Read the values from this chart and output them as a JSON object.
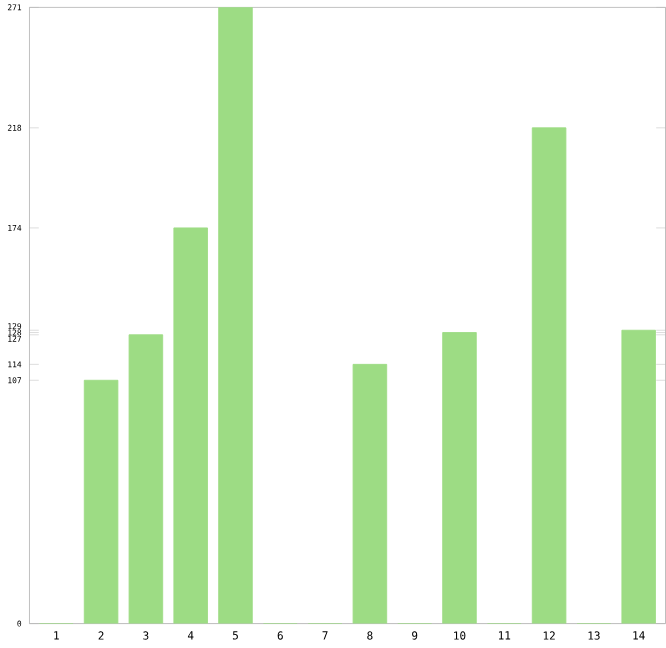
{
  "chart_data": {
    "type": "bar",
    "categories": [
      "1",
      "2",
      "3",
      "4",
      "5",
      "6",
      "7",
      "8",
      "9",
      "10",
      "11",
      "12",
      "13",
      "14"
    ],
    "values": [
      0,
      107,
      127,
      174,
      271,
      0,
      0,
      114,
      0,
      128,
      0,
      218,
      0,
      129
    ],
    "color": "#9ddc84",
    "ylim": [
      0,
      271
    ],
    "yticks": [
      0,
      107,
      114,
      127,
      128,
      129,
      174,
      218,
      271
    ],
    "grid": false
  }
}
